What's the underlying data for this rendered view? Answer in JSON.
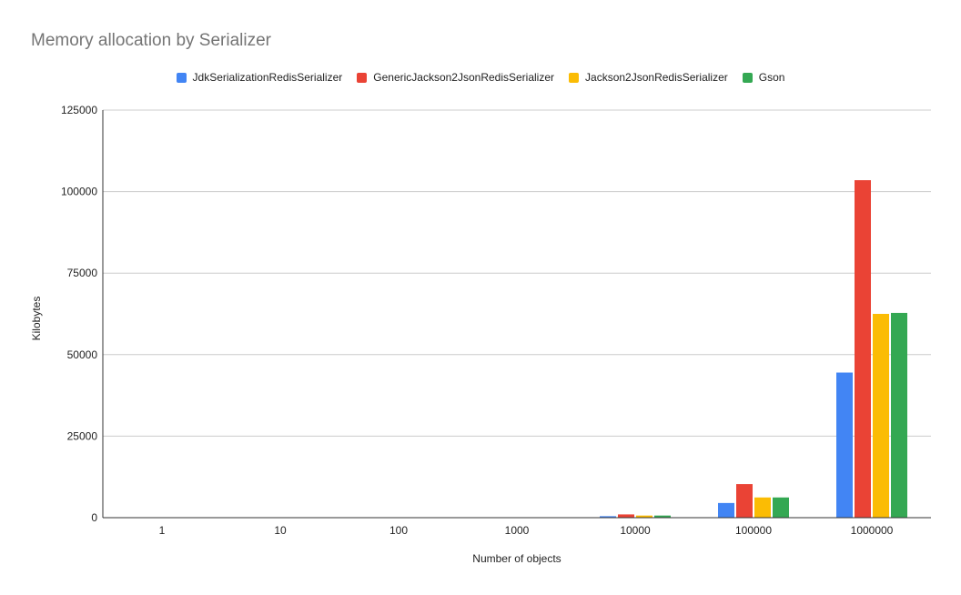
{
  "chart_data": {
    "type": "bar",
    "title": "Memory allocation by Serializer",
    "xlabel": "Number of objects",
    "ylabel": "Kilobytes",
    "ylim": [
      0,
      125000
    ],
    "yticks": [
      0,
      25000,
      50000,
      75000,
      100000,
      125000
    ],
    "categories": [
      "1",
      "10",
      "100",
      "1000",
      "10000",
      "100000",
      "1000000"
    ],
    "series": [
      {
        "name": "JdkSerializationRedisSerializer",
        "color": "#4285F4",
        "values": [
          0,
          0,
          0,
          40,
          450,
          4500,
          44500
        ]
      },
      {
        "name": "GenericJackson2JsonRedisSerializer",
        "color": "#EA4335",
        "values": [
          0,
          0,
          0,
          100,
          1000,
          10300,
          103500
        ]
      },
      {
        "name": "Jackson2JsonRedisSerializer",
        "color": "#FBBC04",
        "values": [
          0,
          0,
          0,
          60,
          650,
          6200,
          62500
        ]
      },
      {
        "name": "Gson",
        "color": "#34A853",
        "values": [
          0,
          0,
          0,
          60,
          650,
          6200,
          62800
        ]
      }
    ],
    "grid": true,
    "legend_position": "top"
  }
}
